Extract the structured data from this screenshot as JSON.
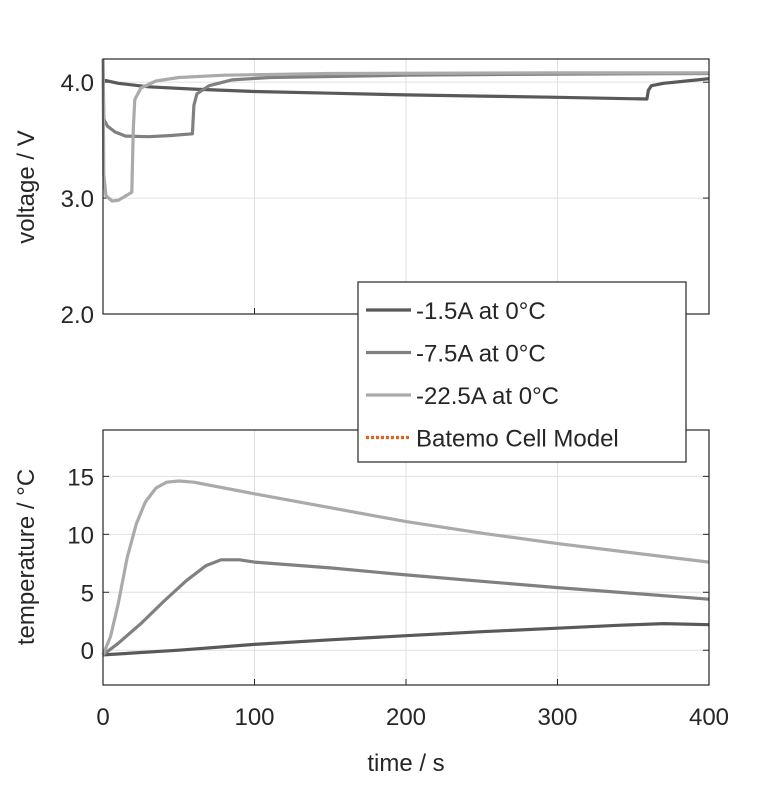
{
  "chart_data": [
    {
      "type": "line",
      "ylabel": "voltage / V",
      "ylim": [
        2.0,
        4.2
      ],
      "xlim": [
        0,
        400
      ],
      "yticks": [
        "2.0",
        "3.0",
        "4.0"
      ],
      "ytick_values": [
        2,
        3,
        4
      ],
      "grid": true,
      "series": [
        {
          "name": "-1.5A at 0°C",
          "color": "#595959",
          "points": [
            [
              0,
              4.02
            ],
            [
              10,
              3.99
            ],
            [
              30,
              3.96
            ],
            [
              60,
              3.94
            ],
            [
              100,
              3.92
            ],
            [
              150,
              3.905
            ],
            [
              200,
              3.89
            ],
            [
              250,
              3.88
            ],
            [
              300,
              3.87
            ],
            [
              359,
              3.855
            ],
            [
              360,
              3.93
            ],
            [
              362,
              3.97
            ],
            [
              370,
              3.99
            ],
            [
              385,
              4.01
            ],
            [
              400,
              4.03
            ]
          ]
        },
        {
          "name": "-7.5A at 0°C",
          "color": "#808080",
          "points": [
            [
              0,
              4.2
            ],
            [
              0.5,
              3.68
            ],
            [
              3,
              3.62
            ],
            [
              8,
              3.57
            ],
            [
              15,
              3.535
            ],
            [
              30,
              3.53
            ],
            [
              45,
              3.54
            ],
            [
              59,
              3.555
            ],
            [
              60,
              3.8
            ],
            [
              62,
              3.9
            ],
            [
              70,
              3.97
            ],
            [
              85,
              4.02
            ],
            [
              110,
              4.04
            ],
            [
              200,
              4.06
            ],
            [
              300,
              4.07
            ],
            [
              400,
              4.075
            ]
          ]
        },
        {
          "name": "-22.5A at 0°C",
          "color": "#aaaaaa",
          "points": [
            [
              0,
              4.2
            ],
            [
              0.5,
              3.2
            ],
            [
              2,
              3.02
            ],
            [
              6,
              2.975
            ],
            [
              10,
              2.98
            ],
            [
              19,
              3.05
            ],
            [
              20,
              3.6
            ],
            [
              21,
              3.85
            ],
            [
              25,
              3.95
            ],
            [
              35,
              4.01
            ],
            [
              50,
              4.04
            ],
            [
              80,
              4.06
            ],
            [
              150,
              4.075
            ],
            [
              300,
              4.08
            ],
            [
              400,
              4.08
            ]
          ]
        }
      ]
    },
    {
      "type": "line",
      "xlabel": "time / s",
      "ylabel": "temperature / °C",
      "xlim": [
        0,
        400
      ],
      "ylim": [
        -3,
        19
      ],
      "xticks": [
        "0",
        "100",
        "200",
        "300",
        "400"
      ],
      "xtick_values": [
        0,
        100,
        200,
        300,
        400
      ],
      "yticks": [
        "0",
        "5",
        "10",
        "15"
      ],
      "ytick_values": [
        0,
        5,
        10,
        15
      ],
      "grid": true,
      "series": [
        {
          "name": "-1.5A at 0°C",
          "color": "#595959",
          "points": [
            [
              0,
              -0.4
            ],
            [
              50,
              0
            ],
            [
              100,
              0.5
            ],
            [
              150,
              0.9
            ],
            [
              200,
              1.25
            ],
            [
              250,
              1.6
            ],
            [
              300,
              1.9
            ],
            [
              340,
              2.15
            ],
            [
              370,
              2.3
            ],
            [
              400,
              2.2
            ]
          ]
        },
        {
          "name": "-7.5A at 0°C",
          "color": "#808080",
          "points": [
            [
              0,
              -0.4
            ],
            [
              10,
              0.6
            ],
            [
              25,
              2.3
            ],
            [
              40,
              4.2
            ],
            [
              55,
              6.0
            ],
            [
              68,
              7.3
            ],
            [
              78,
              7.8
            ],
            [
              90,
              7.8
            ],
            [
              100,
              7.6
            ],
            [
              150,
              7.1
            ],
            [
              200,
              6.5
            ],
            [
              250,
              5.95
            ],
            [
              300,
              5.4
            ],
            [
              350,
              4.9
            ],
            [
              400,
              4.4
            ]
          ]
        },
        {
          "name": "-22.5A at 0°C",
          "color": "#aaaaaa",
          "points": [
            [
              0,
              -0.4
            ],
            [
              5,
              1.2
            ],
            [
              10,
              4
            ],
            [
              16,
              8
            ],
            [
              22,
              10.9
            ],
            [
              28,
              12.8
            ],
            [
              35,
              14
            ],
            [
              42,
              14.5
            ],
            [
              50,
              14.6
            ],
            [
              60,
              14.5
            ],
            [
              80,
              14
            ],
            [
              100,
              13.5
            ],
            [
              150,
              12.3
            ],
            [
              200,
              11.1
            ],
            [
              250,
              10.1
            ],
            [
              300,
              9.2
            ],
            [
              350,
              8.4
            ],
            [
              400,
              7.6
            ]
          ]
        }
      ]
    }
  ],
  "legend": {
    "placement": "center-right",
    "entries": [
      {
        "label": "-1.5A at 0°C",
        "color": "#595959",
        "style": "solid"
      },
      {
        "label": "-7.5A at 0°C",
        "color": "#808080",
        "style": "solid"
      },
      {
        "label": "-22.5A at 0°C",
        "color": "#aaaaaa",
        "style": "solid"
      },
      {
        "label": "Batemo Cell Model",
        "color": "#e8601c",
        "style": "dotted"
      }
    ]
  }
}
